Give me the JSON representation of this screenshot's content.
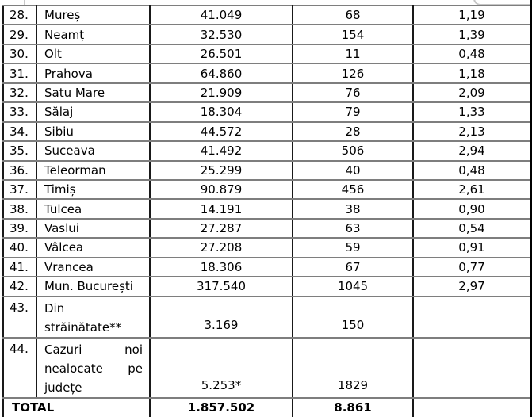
{
  "table": {
    "rows": [
      {
        "num": "28.",
        "name": "Mureș",
        "c3": "41.049",
        "c4": "68",
        "c5": "1,19"
      },
      {
        "num": "29.",
        "name": "Neamț",
        "c3": "32.530",
        "c4": "154",
        "c5": "1,39"
      },
      {
        "num": "30.",
        "name": "Olt",
        "c3": "26.501",
        "c4": "11",
        "c5": "0,48"
      },
      {
        "num": "31.",
        "name": "Prahova",
        "c3": "64.860",
        "c4": "126",
        "c5": "1,18"
      },
      {
        "num": "32.",
        "name": "Satu Mare",
        "c3": "21.909",
        "c4": "76",
        "c5": "2,09"
      },
      {
        "num": "33.",
        "name": "Sălaj",
        "c3": "18.304",
        "c4": "79",
        "c5": "1,33"
      },
      {
        "num": "34.",
        "name": "Sibiu",
        "c3": "44.572",
        "c4": "28",
        "c5": "2,13"
      },
      {
        "num": "35.",
        "name": "Suceava",
        "c3": "41.492",
        "c4": "506",
        "c5": "2,94"
      },
      {
        "num": "36.",
        "name": "Teleorman",
        "c3": "25.299",
        "c4": "40",
        "c5": "0,48"
      },
      {
        "num": "37.",
        "name": "Timiș",
        "c3": "90.879",
        "c4": "456",
        "c5": "2,61"
      },
      {
        "num": "38.",
        "name": "Tulcea",
        "c3": "14.191",
        "c4": "38",
        "c5": "0,90"
      },
      {
        "num": "39.",
        "name": "Vaslui",
        "c3": "27.287",
        "c4": "63",
        "c5": "0,54"
      },
      {
        "num": "40.",
        "name": "Vâlcea",
        "c3": "27.208",
        "c4": "59",
        "c5": "0,91"
      },
      {
        "num": "41.",
        "name": "Vrancea",
        "c3": "18.306",
        "c4": "67",
        "c5": "0,77"
      },
      {
        "num": "42.",
        "name": "Mun. București",
        "c3": "317.540",
        "c4": "1045",
        "c5": "2,97"
      },
      {
        "num": "43.",
        "name_lines": [
          "Din",
          "străinătate**"
        ],
        "c3": "3.169",
        "c4": "150",
        "c5": ""
      },
      {
        "num": "44.",
        "name_justified": [
          [
            "Cazuri",
            "noi"
          ],
          [
            "nealocate",
            "pe"
          ],
          [
            "județe"
          ]
        ],
        "c3": "5.253*",
        "c4": "1829",
        "c5": ""
      }
    ],
    "total": {
      "label": "TOTAL",
      "c3": "1.857.502",
      "c4": "8.861",
      "c5": ""
    }
  },
  "colors": {
    "grid_vertical": "#191919",
    "grid_horizontal": "#7e7e7e",
    "text": "#000000",
    "background": "#ffffff"
  }
}
